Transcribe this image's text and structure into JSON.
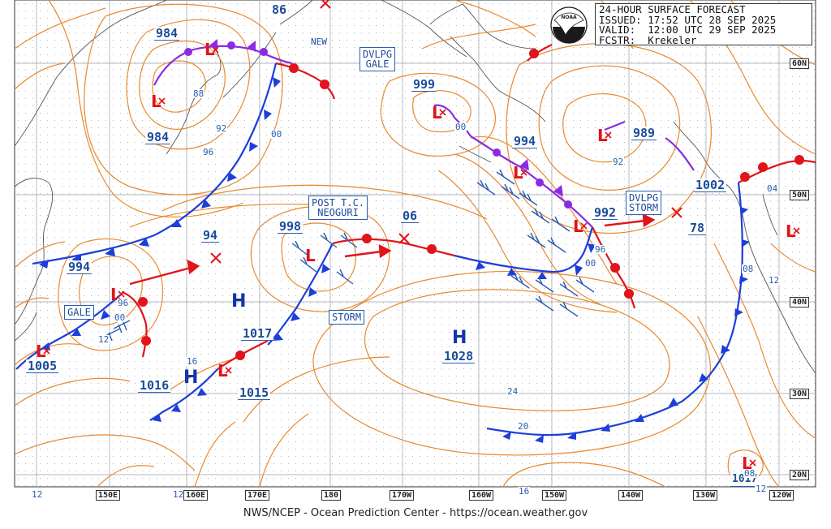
{
  "header": {
    "line1": "24-HOUR SURFACE FORECAST",
    "line2": "ISSUED: 17:52 UTC 28 SEP 2025",
    "line3": "VALID:  12:00 UTC 29 SEP 2025",
    "line4": "FCSTR:  Krekeler"
  },
  "footer": "NWS/NCEP - Ocean Prediction Center - https://ocean.weather.gov",
  "longitudes": [
    "150E",
    "160E",
    "170E",
    "180",
    "170W",
    "160W",
    "150W",
    "140W",
    "130W",
    "120W"
  ],
  "latitudes": [
    "60N",
    "50N",
    "40N",
    "30N",
    "20N"
  ],
  "highs": [
    {
      "label": "1017"
    },
    {
      "label": "1016"
    },
    {
      "label": "1028"
    }
  ],
  "pressure_labels": [
    "984",
    "984",
    "994",
    "1005",
    "94",
    "998",
    "06",
    "999",
    "994",
    "989",
    "992",
    "1002",
    "78",
    "1017",
    "1016",
    "1015",
    "1028",
    "86",
    "1017"
  ],
  "contour_labels": [
    "88",
    "92",
    "96",
    "00",
    "96",
    "00",
    "16",
    "24",
    "20",
    "16",
    "12",
    "12",
    "00",
    "92",
    "96",
    "00",
    "04",
    "08",
    "12",
    "08",
    "12",
    "12"
  ],
  "warning_boxes": {
    "dvlpg_gale": "DVLPG\nGALE",
    "post_tc": "POST T.C.\nNEOGURI",
    "dvlpg_storm": "DVLPG\nSTORM",
    "storm": "STORM",
    "gale": "GALE",
    "new": "NEW"
  },
  "colors": {
    "isobar": "#e8892e",
    "cold_front": "#1d3fd8",
    "warm_front": "#e0141a",
    "occluded_front": "#8a2be2",
    "label_blue": "#1b4c9a",
    "grid": "#9aa0a8"
  }
}
